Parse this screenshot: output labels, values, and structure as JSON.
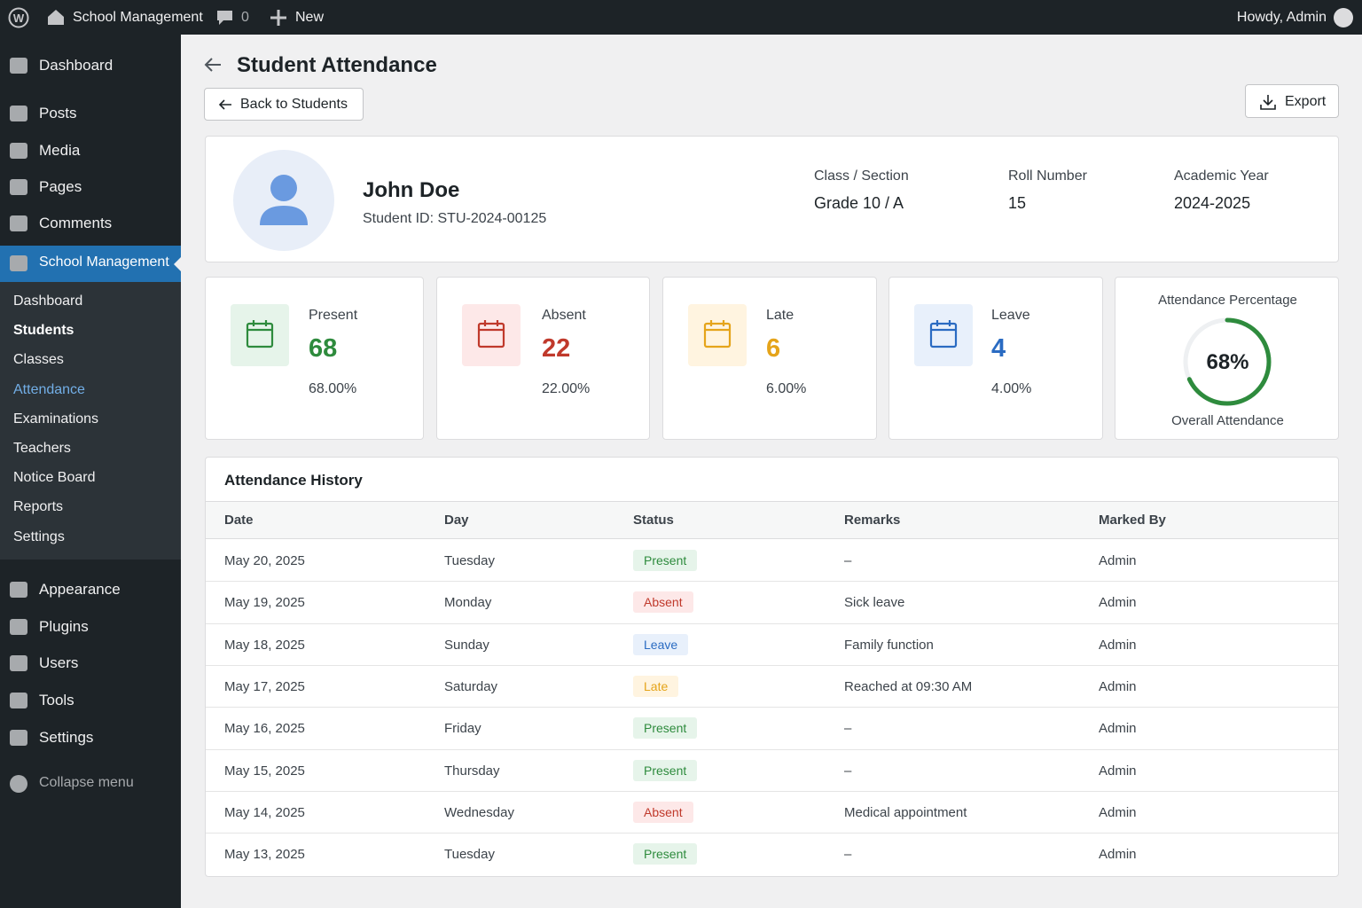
{
  "admin_bar": {
    "site": "School Management",
    "comments": "0",
    "new": "New",
    "greeting": "Howdy, Admin"
  },
  "sidebar": {
    "menu": [
      "Dashboard",
      "Posts",
      "Media",
      "Pages",
      "Comments"
    ],
    "active": "School Management",
    "submenu": [
      "Dashboard",
      "Students",
      "Classes",
      "Attendance",
      "Examinations",
      "Teachers",
      "Notice Board",
      "Reports",
      "Settings"
    ],
    "menu2": [
      "Appearance",
      "Plugins",
      "Users",
      "Tools",
      "Settings"
    ],
    "collapse": "Collapse menu"
  },
  "header": {
    "title": "Student Attendance",
    "back": "Back to Students",
    "export": "Export"
  },
  "student": {
    "name": "John Doe",
    "id": "Student ID: STU-2024-00125",
    "fields": [
      {
        "label": "Class / Section",
        "value": "Grade 10 / A"
      },
      {
        "label": "Roll Number",
        "value": "15"
      },
      {
        "label": "Academic Year",
        "value": "2024-2025"
      }
    ]
  },
  "stats": [
    {
      "label": "Present",
      "count": 68,
      "percent": "68.00%"
    },
    {
      "label": "Absent",
      "count": 22,
      "percent": "22.00%"
    },
    {
      "label": "Late",
      "count": 6,
      "percent": "6.00%"
    },
    {
      "label": "Leave",
      "count": 4,
      "percent": "4.00%"
    }
  ],
  "attendance": {
    "title": "Attendance Percentage",
    "value": 68,
    "value_label": "68%",
    "caption": "Overall Attendance"
  },
  "history": {
    "title": "Attendance History",
    "columns": [
      "Date",
      "Day",
      "Status",
      "Remarks",
      "Marked By"
    ],
    "rows": [
      [
        "May 20, 2025",
        "Tuesday",
        "Present",
        "–",
        "Admin"
      ],
      [
        "May 19, 2025",
        "Monday",
        "Absent",
        "Sick leave",
        "Admin"
      ],
      [
        "May 18, 2025",
        "Sunday",
        "Leave",
        "Family function",
        "Admin"
      ],
      [
        "May 17, 2025",
        "Saturday",
        "Late",
        "Reached at 09:30 AM",
        "Admin"
      ],
      [
        "May 16, 2025",
        "Friday",
        "Present",
        "–",
        "Admin"
      ],
      [
        "May 15, 2025",
        "Thursday",
        "Present",
        "–",
        "Admin"
      ],
      [
        "May 14, 2025",
        "Wednesday",
        "Absent",
        "Medical appointment",
        "Admin"
      ],
      [
        "May 13, 2025",
        "Tuesday",
        "Present",
        "–",
        "Admin"
      ]
    ]
  }
}
